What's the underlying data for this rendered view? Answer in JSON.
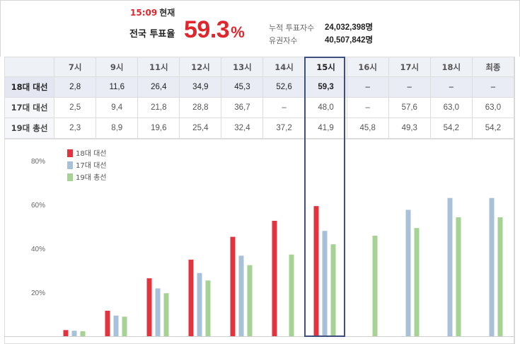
{
  "header": {
    "time": "15:09",
    "time_suffix": "현재",
    "rate_label": "전국 투표율",
    "rate_value": "59.3",
    "rate_unit": "%",
    "cumulative_label": "누적 투표자수",
    "cumulative_value": "24,032,398명",
    "eligible_label": "유권자수",
    "eligible_value": "40,507,842명"
  },
  "table": {
    "columns": [
      "7시",
      "9시",
      "11시",
      "12시",
      "13시",
      "14시",
      "15시",
      "16시",
      "17시",
      "18시",
      "최종"
    ],
    "highlight_column": 6,
    "rows": [
      {
        "label": "18대 대선",
        "cells": [
          "2,8",
          "11,6",
          "26,4",
          "34,9",
          "45,3",
          "52,6",
          "59,3",
          "–",
          "–",
          "–",
          "–"
        ]
      },
      {
        "label": "17대 대선",
        "cells": [
          "2,5",
          "9,4",
          "21,8",
          "28,8",
          "36,7",
          "–",
          "48,0",
          "–",
          "57,6",
          "63,0",
          "63,0"
        ]
      },
      {
        "label": "19대 총선",
        "cells": [
          "2,3",
          "8,9",
          "19,6",
          "25,4",
          "32,4",
          "37,2",
          "41,9",
          "45,8",
          "49,3",
          "54,2",
          "54,2"
        ]
      }
    ]
  },
  "chart_data": {
    "type": "bar",
    "categories": [
      "7시",
      "9시",
      "11시",
      "12시",
      "13시",
      "14시",
      "15시",
      "16시",
      "17시",
      "18시",
      "최종"
    ],
    "series": [
      {
        "name": "18대 대선",
        "color": "#e2343f",
        "values": [
          2.8,
          11.6,
          26.4,
          34.9,
          45.3,
          52.6,
          59.3,
          null,
          null,
          null,
          null
        ]
      },
      {
        "name": "17대 대선",
        "color": "#a8c1d9",
        "values": [
          2.5,
          9.4,
          21.8,
          28.8,
          36.7,
          null,
          48.0,
          null,
          57.6,
          63.0,
          63.0
        ]
      },
      {
        "name": "19대 총선",
        "color": "#a6d394",
        "values": [
          2.3,
          8.9,
          19.6,
          25.4,
          32.4,
          37.2,
          41.9,
          45.8,
          49.3,
          54.2,
          54.2
        ]
      }
    ],
    "yticks": [
      "20%",
      "40%",
      "60%",
      "80%"
    ],
    "ytick_values": [
      20,
      40,
      60,
      80
    ],
    "ylim": [
      0,
      80
    ],
    "legend_position": "top-left",
    "grid": false
  }
}
